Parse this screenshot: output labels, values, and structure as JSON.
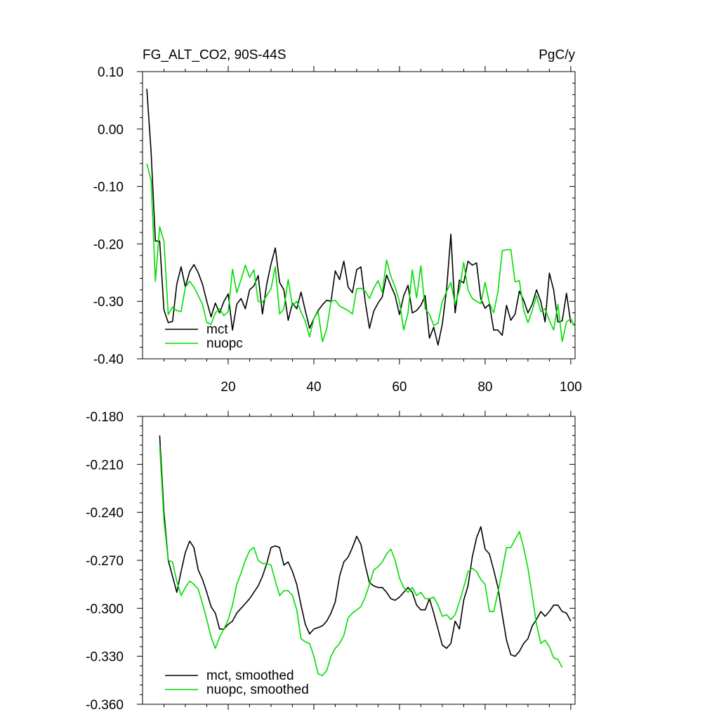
{
  "colors": {
    "mct": "#000000",
    "nuopc": "#00dd00"
  },
  "chart_data": [
    {
      "type": "line",
      "title": "FG_ALT_CO2, 90S-44S",
      "units": "PgC/y",
      "xlim": [
        0,
        101
      ],
      "ylim": [
        -0.4,
        0.1
      ],
      "xticks": [
        20,
        40,
        60,
        80,
        100
      ],
      "yticks": [
        0.1,
        0.0,
        -0.1,
        -0.2,
        -0.3,
        -0.4
      ],
      "ytick_labels": [
        "0.10",
        "0.00",
        "-0.10",
        "-0.20",
        "-0.30",
        "-0.40"
      ],
      "grid": false,
      "legend_position": "bottom-left",
      "x_start": 1,
      "series": [
        {
          "name": "mct",
          "color": "#000000",
          "values": [
            0.07,
            -0.04,
            -0.195,
            -0.195,
            -0.315,
            -0.337,
            -0.335,
            -0.27,
            -0.24,
            -0.275,
            -0.248,
            -0.236,
            -0.25,
            -0.27,
            -0.3,
            -0.327,
            -0.303,
            -0.32,
            -0.3,
            -0.287,
            -0.35,
            -0.305,
            -0.295,
            -0.313,
            -0.28,
            -0.273,
            -0.255,
            -0.322,
            -0.27,
            -0.235,
            -0.207,
            -0.267,
            -0.28,
            -0.333,
            -0.303,
            -0.313,
            -0.284,
            -0.316,
            -0.347,
            -0.33,
            -0.316,
            -0.306,
            -0.298,
            -0.3,
            -0.247,
            -0.262,
            -0.23,
            -0.275,
            -0.285,
            -0.245,
            -0.24,
            -0.3,
            -0.347,
            -0.317,
            -0.303,
            -0.292,
            -0.254,
            -0.273,
            -0.29,
            -0.323,
            -0.29,
            -0.272,
            -0.32,
            -0.316,
            -0.307,
            -0.29,
            -0.364,
            -0.345,
            -0.376,
            -0.34,
            -0.28,
            -0.183,
            -0.32,
            -0.263,
            -0.268,
            -0.23,
            -0.237,
            -0.233,
            -0.296,
            -0.312,
            -0.305,
            -0.35,
            -0.35,
            -0.359,
            -0.307,
            -0.333,
            -0.322,
            -0.282,
            -0.298,
            -0.32,
            -0.305,
            -0.28,
            -0.3,
            -0.336,
            -0.251,
            -0.28,
            -0.336,
            -0.334,
            -0.286,
            -0.338
          ]
        },
        {
          "name": "nuopc",
          "color": "#00dd00",
          "values": [
            -0.06,
            -0.09,
            -0.265,
            -0.17,
            -0.195,
            -0.323,
            -0.31,
            -0.316,
            -0.318,
            -0.275,
            -0.265,
            -0.275,
            -0.29,
            -0.305,
            -0.337,
            -0.34,
            -0.32,
            -0.313,
            -0.325,
            -0.318,
            -0.244,
            -0.285,
            -0.262,
            -0.237,
            -0.258,
            -0.245,
            -0.3,
            -0.302,
            -0.29,
            -0.278,
            -0.24,
            -0.322,
            -0.313,
            -0.262,
            -0.308,
            -0.3,
            -0.318,
            -0.335,
            -0.362,
            -0.33,
            -0.318,
            -0.37,
            -0.348,
            -0.3,
            -0.298,
            -0.308,
            -0.312,
            -0.316,
            -0.322,
            -0.278,
            -0.277,
            -0.282,
            -0.295,
            -0.277,
            -0.264,
            -0.285,
            -0.228,
            -0.257,
            -0.275,
            -0.3,
            -0.35,
            -0.32,
            -0.245,
            -0.294,
            -0.238,
            -0.313,
            -0.322,
            -0.342,
            -0.338,
            -0.3,
            -0.283,
            -0.267,
            -0.305,
            -0.28,
            -0.232,
            -0.28,
            -0.295,
            -0.3,
            -0.304,
            -0.267,
            -0.303,
            -0.32,
            -0.283,
            -0.212,
            -0.21,
            -0.21,
            -0.266,
            -0.264,
            -0.315,
            -0.337,
            -0.316,
            -0.29,
            -0.318,
            -0.313,
            -0.333,
            -0.35,
            -0.305,
            -0.37,
            -0.336,
            -0.33,
            -0.345
          ]
        }
      ]
    },
    {
      "type": "line",
      "title": "",
      "xlim": [
        0,
        101
      ],
      "ylim": [
        -0.36,
        -0.18
      ],
      "xticks": [
        20,
        40,
        60,
        80,
        100
      ],
      "yticks": [
        -0.18,
        -0.21,
        -0.24,
        -0.27,
        -0.3,
        -0.33,
        -0.36
      ],
      "ytick_labels": [
        "-0.180",
        "-0.210",
        "-0.240",
        "-0.270",
        "-0.300",
        "-0.330",
        "-0.360"
      ],
      "grid": false,
      "legend_position": "bottom-left",
      "x_start": 4,
      "series": [
        {
          "name": "mct, smoothed",
          "color": "#000000",
          "values": [
            -0.192,
            -0.24,
            -0.27,
            -0.28,
            -0.29,
            -0.277,
            -0.265,
            -0.258,
            -0.262,
            -0.276,
            -0.282,
            -0.29,
            -0.299,
            -0.303,
            -0.313,
            -0.313,
            -0.31,
            -0.308,
            -0.303,
            -0.3,
            -0.297,
            -0.294,
            -0.29,
            -0.286,
            -0.28,
            -0.272,
            -0.262,
            -0.261,
            -0.262,
            -0.273,
            -0.271,
            -0.277,
            -0.285,
            -0.298,
            -0.31,
            -0.316,
            -0.313,
            -0.312,
            -0.311,
            -0.308,
            -0.303,
            -0.296,
            -0.28,
            -0.271,
            -0.268,
            -0.262,
            -0.255,
            -0.26,
            -0.273,
            -0.284,
            -0.286,
            -0.287,
            -0.287,
            -0.29,
            -0.294,
            -0.295,
            -0.293,
            -0.29,
            -0.287,
            -0.29,
            -0.298,
            -0.301,
            -0.301,
            -0.294,
            -0.303,
            -0.313,
            -0.323,
            -0.325,
            -0.322,
            -0.308,
            -0.313,
            -0.295,
            -0.286,
            -0.268,
            -0.256,
            -0.249,
            -0.263,
            -0.266,
            -0.276,
            -0.287,
            -0.304,
            -0.32,
            -0.329,
            -0.33,
            -0.327,
            -0.322,
            -0.319,
            -0.311,
            -0.307,
            -0.302,
            -0.305,
            -0.302,
            -0.298,
            -0.298,
            -0.302,
            -0.303,
            -0.308
          ]
        },
        {
          "name": "nuopc, smoothed",
          "color": "#00dd00",
          "values": [
            -0.198,
            -0.245,
            -0.27,
            -0.271,
            -0.283,
            -0.292,
            -0.287,
            -0.283,
            -0.285,
            -0.288,
            -0.297,
            -0.307,
            -0.318,
            -0.325,
            -0.318,
            -0.313,
            -0.307,
            -0.298,
            -0.285,
            -0.278,
            -0.27,
            -0.264,
            -0.262,
            -0.27,
            -0.272,
            -0.272,
            -0.273,
            -0.283,
            -0.292,
            -0.289,
            -0.289,
            -0.292,
            -0.301,
            -0.319,
            -0.321,
            -0.322,
            -0.33,
            -0.341,
            -0.342,
            -0.339,
            -0.33,
            -0.325,
            -0.322,
            -0.317,
            -0.306,
            -0.303,
            -0.301,
            -0.299,
            -0.293,
            -0.285,
            -0.276,
            -0.274,
            -0.271,
            -0.266,
            -0.263,
            -0.27,
            -0.281,
            -0.287,
            -0.29,
            -0.287,
            -0.292,
            -0.29,
            -0.294,
            -0.294,
            -0.293,
            -0.298,
            -0.305,
            -0.304,
            -0.307,
            -0.304,
            -0.296,
            -0.287,
            -0.277,
            -0.275,
            -0.277,
            -0.282,
            -0.285,
            -0.302,
            -0.302,
            -0.29,
            -0.276,
            -0.262,
            -0.262,
            -0.257,
            -0.252,
            -0.262,
            -0.275,
            -0.292,
            -0.31,
            -0.322,
            -0.32,
            -0.324,
            -0.331,
            -0.332,
            -0.337
          ]
        }
      ]
    }
  ]
}
